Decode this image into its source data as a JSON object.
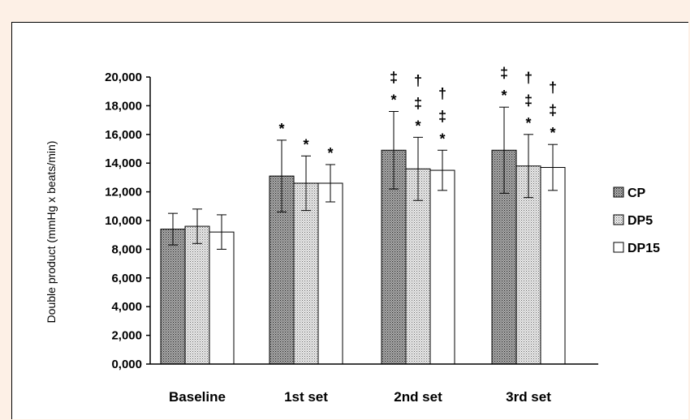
{
  "chart_data": {
    "type": "bar",
    "title": "",
    "xlabel": "",
    "ylabel": "Double product (mmHg x beats/min)",
    "ylim": [
      0,
      20000
    ],
    "yticks": [
      "0,000",
      "2,000",
      "4,000",
      "6,000",
      "8,000",
      "10,000",
      "12,000",
      "14,000",
      "16,000",
      "18,000",
      "20,000"
    ],
    "grid": false,
    "legend_position": "right",
    "categories": [
      "Baseline",
      "1st set",
      "2nd set",
      "3rd set"
    ],
    "series": [
      {
        "name": "CP",
        "pattern": "dense-dots",
        "values": [
          9400,
          13100,
          14900,
          14900
        ],
        "errors": [
          1100,
          2500,
          2700,
          3000
        ],
        "annotations": [
          [],
          [
            "*"
          ],
          [
            "‡",
            "*"
          ],
          [
            "‡",
            "*"
          ]
        ]
      },
      {
        "name": "DP5",
        "pattern": "light-dots",
        "values": [
          9600,
          12600,
          13600,
          13800
        ],
        "errors": [
          1200,
          1900,
          2200,
          2200
        ],
        "annotations": [
          [],
          [
            "*"
          ],
          [
            "†",
            "‡",
            "*"
          ],
          [
            "†",
            "‡",
            "*"
          ]
        ]
      },
      {
        "name": "DP15",
        "pattern": "white",
        "values": [
          9200,
          12600,
          13500,
          13700
        ],
        "errors": [
          1200,
          1300,
          1400,
          1600
        ],
        "annotations": [
          [],
          [
            "*"
          ],
          [
            "†",
            "‡",
            "*"
          ],
          [
            "†",
            "‡",
            "*"
          ]
        ]
      }
    ]
  }
}
